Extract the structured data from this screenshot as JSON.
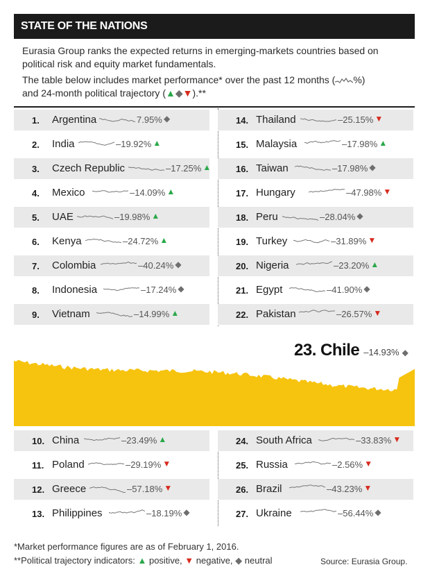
{
  "header": {
    "title": "STATE OF THE NATIONS"
  },
  "intro": {
    "line1": "Eurasia Group ranks the expected returns in emerging-markets countries based on political risk and equity market fundamentals.",
    "line2a": "The table below includes market performance* over the past 12 months (",
    "line2b": "%)",
    "line3a": "and 24-month political trajectory (",
    "line3b": ").**"
  },
  "legend_symbols": {
    "positive": "▲",
    "negative": "▼",
    "neutral": "◆"
  },
  "colors": {
    "positive": "#2aa84a",
    "negative": "#d62b1e",
    "neutral": "#6e6e6e",
    "chart_fill": "#f6c30f",
    "header_bg": "#1b1b1b"
  },
  "chart_data": {
    "type": "table",
    "columns": [
      "rank",
      "country",
      "market_performance_12mo",
      "political_trajectory_24mo"
    ],
    "rows": [
      {
        "rank": "1.",
        "country": "Argentina",
        "value": "7.95%",
        "trajectory": "neutral"
      },
      {
        "rank": "2.",
        "country": "India",
        "value": "–19.92%",
        "trajectory": "positive"
      },
      {
        "rank": "3.",
        "country": "Czech Republic",
        "value": "–17.25%",
        "trajectory": "positive"
      },
      {
        "rank": "4.",
        "country": "Mexico",
        "value": "–14.09%",
        "trajectory": "positive"
      },
      {
        "rank": "5.",
        "country": "UAE",
        "value": "–19.98%",
        "trajectory": "positive"
      },
      {
        "rank": "6.",
        "country": "Kenya",
        "value": "–24.72%",
        "trajectory": "positive"
      },
      {
        "rank": "7.",
        "country": "Colombia",
        "value": "–40.24%",
        "trajectory": "neutral"
      },
      {
        "rank": "8.",
        "country": "Indonesia",
        "value": "–17.24%",
        "trajectory": "neutral"
      },
      {
        "rank": "9.",
        "country": "Vietnam",
        "value": "–14.99%",
        "trajectory": "positive"
      },
      {
        "rank": "10.",
        "country": "China",
        "value": "–23.49%",
        "trajectory": "positive"
      },
      {
        "rank": "11.",
        "country": "Poland",
        "value": "–29.19%",
        "trajectory": "negative"
      },
      {
        "rank": "12.",
        "country": "Greece",
        "value": "–57.18%",
        "trajectory": "negative"
      },
      {
        "rank": "13.",
        "country": "Philippines",
        "value": "–18.19%",
        "trajectory": "neutral"
      },
      {
        "rank": "14.",
        "country": "Thailand",
        "value": "–25.15%",
        "trajectory": "negative"
      },
      {
        "rank": "15.",
        "country": "Malaysia",
        "value": "–17.98%",
        "trajectory": "positive"
      },
      {
        "rank": "16.",
        "country": "Taiwan",
        "value": "–17.98%",
        "trajectory": "neutral"
      },
      {
        "rank": "17.",
        "country": "Hungary",
        "value": "–47.98%",
        "trajectory": "negative"
      },
      {
        "rank": "18.",
        "country": "Peru",
        "value": "–28.04%",
        "trajectory": "neutral"
      },
      {
        "rank": "19.",
        "country": "Turkey",
        "value": "–31.89%",
        "trajectory": "negative"
      },
      {
        "rank": "20.",
        "country": "Nigeria",
        "value": "–23.20%",
        "trajectory": "positive"
      },
      {
        "rank": "21.",
        "country": "Egypt",
        "value": "–41.90%",
        "trajectory": "neutral"
      },
      {
        "rank": "22.",
        "country": "Pakistan",
        "value": "–26.57%",
        "trajectory": "negative"
      },
      {
        "rank": "23.",
        "country": "Chile",
        "value": "–14.93%",
        "trajectory": "neutral"
      },
      {
        "rank": "24.",
        "country": "South Africa",
        "value": "–33.83%",
        "trajectory": "negative"
      },
      {
        "rank": "25.",
        "country": "Russia",
        "value": "–2.56%",
        "trajectory": "negative"
      },
      {
        "rank": "26.",
        "country": "Brazil",
        "value": "–43.23%",
        "trajectory": "negative"
      },
      {
        "rank": "27.",
        "country": "Ukraine",
        "value": "–56.44%",
        "trajectory": "neutral"
      }
    ],
    "featured": "Chile"
  },
  "footer": {
    "note1": "*Market performance figures are as of February 1, 2016.",
    "note2_prefix": "**Political trajectory indicators: ",
    "note2_pos": "positive, ",
    "note2_neg": "negative, ",
    "note2_neu": "neutral",
    "source": "Source: Eurasia Group."
  }
}
